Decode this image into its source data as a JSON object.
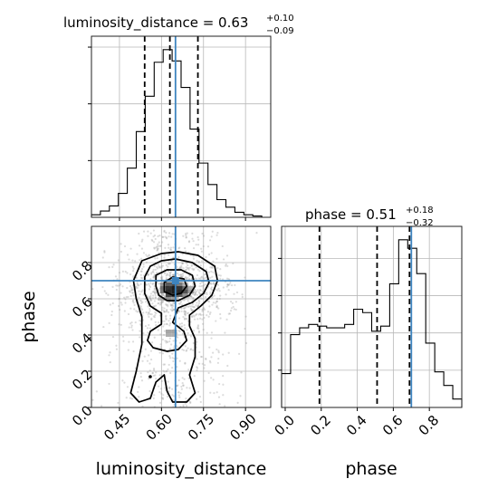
{
  "chart_data": [
    {
      "type": "histogram",
      "panel": "top-left",
      "parameter": "luminosity_distance",
      "title_text": "luminosity_distance = 0.63",
      "title_sup": "+0.10",
      "title_sub": "−0.09",
      "xlim": [
        0.35,
        0.99
      ],
      "bin_edges": [
        0.35,
        0.382,
        0.414,
        0.446,
        0.478,
        0.51,
        0.542,
        0.574,
        0.606,
        0.638,
        0.67,
        0.702,
        0.734,
        0.766,
        0.798,
        0.83,
        0.862,
        0.894,
        0.926,
        0.958,
        0.99
      ],
      "counts": [
        2,
        5,
        9,
        19,
        39,
        68,
        96,
        123,
        133,
        124,
        103,
        70,
        43,
        26,
        14,
        8,
        4,
        2,
        1,
        0
      ],
      "quantiles": [
        0.54,
        0.63,
        0.73
      ],
      "truth": 0.65
    },
    {
      "type": "histogram",
      "panel": "bottom-right",
      "parameter": "phase",
      "title_text": "phase = 0.51",
      "title_sup": "+0.18",
      "title_sub": "−0.32",
      "xlim": [
        -0.02,
        0.98
      ],
      "bin_edges": [
        -0.02,
        0.03,
        0.08,
        0.13,
        0.18,
        0.23,
        0.28,
        0.33,
        0.38,
        0.43,
        0.48,
        0.53,
        0.58,
        0.63,
        0.68,
        0.73,
        0.78,
        0.83,
        0.88,
        0.93,
        0.98
      ],
      "counts": [
        20,
        43,
        47,
        49,
        48,
        47,
        47,
        49,
        58,
        56,
        45,
        48,
        73,
        99,
        94,
        79,
        38,
        21,
        13,
        5
      ],
      "quantiles": [
        0.19,
        0.51,
        0.69
      ],
      "truth": 0.7,
      "xticks": [
        "0.0",
        "0.2",
        "0.4",
        "0.6",
        "0.8"
      ],
      "xlabel": "phase"
    },
    {
      "type": "scatter",
      "panel": "bottom-left",
      "xlim": [
        0.35,
        0.99
      ],
      "ylim": [
        0.0,
        1.0
      ],
      "xticks": [
        "0.45",
        "0.60",
        "0.75",
        "0.90"
      ],
      "yticks": [
        "0.0",
        "0.2",
        "0.4",
        "0.6",
        "0.8"
      ],
      "xlabel": "luminosity_distance",
      "ylabel": "phase",
      "truth": [
        0.65,
        0.7
      ],
      "density_cells": [
        {
          "x": 0.625,
          "y": 0.7,
          "v": 0.3
        },
        {
          "x": 0.645,
          "y": 0.7,
          "v": 0.3
        },
        {
          "x": 0.665,
          "y": 0.7,
          "v": 0.2
        },
        {
          "x": 0.605,
          "y": 0.68,
          "v": 0.4
        },
        {
          "x": 0.625,
          "y": 0.68,
          "v": 0.7
        },
        {
          "x": 0.645,
          "y": 0.68,
          "v": 0.8
        },
        {
          "x": 0.665,
          "y": 0.68,
          "v": 0.55
        },
        {
          "x": 0.685,
          "y": 0.68,
          "v": 0.3
        },
        {
          "x": 0.605,
          "y": 0.66,
          "v": 0.6
        },
        {
          "x": 0.625,
          "y": 0.66,
          "v": 0.9
        },
        {
          "x": 0.645,
          "y": 0.66,
          "v": 1.0
        },
        {
          "x": 0.665,
          "y": 0.66,
          "v": 0.9
        },
        {
          "x": 0.685,
          "y": 0.66,
          "v": 0.6
        },
        {
          "x": 0.705,
          "y": 0.66,
          "v": 0.3
        },
        {
          "x": 0.605,
          "y": 0.64,
          "v": 0.55
        },
        {
          "x": 0.625,
          "y": 0.64,
          "v": 0.95
        },
        {
          "x": 0.645,
          "y": 0.64,
          "v": 1.0
        },
        {
          "x": 0.665,
          "y": 0.64,
          "v": 0.95
        },
        {
          "x": 0.685,
          "y": 0.64,
          "v": 0.75
        },
        {
          "x": 0.705,
          "y": 0.64,
          "v": 0.4
        },
        {
          "x": 0.625,
          "y": 0.62,
          "v": 0.8
        },
        {
          "x": 0.645,
          "y": 0.62,
          "v": 0.85
        },
        {
          "x": 0.665,
          "y": 0.62,
          "v": 0.7
        },
        {
          "x": 0.685,
          "y": 0.62,
          "v": 0.45
        },
        {
          "x": 0.605,
          "y": 0.6,
          "v": 0.3
        },
        {
          "x": 0.625,
          "y": 0.6,
          "v": 0.45
        },
        {
          "x": 0.645,
          "y": 0.6,
          "v": 0.4
        },
        {
          "x": 0.625,
          "y": 0.42,
          "v": 0.35
        },
        {
          "x": 0.645,
          "y": 0.42,
          "v": 0.35
        },
        {
          "x": 0.625,
          "y": 0.4,
          "v": 0.3
        },
        {
          "x": 0.645,
          "y": 0.4,
          "v": 0.3
        }
      ],
      "contours": [
        [
          [
            0.56,
            0.78
          ],
          [
            0.6,
            0.81
          ],
          [
            0.65,
            0.82
          ],
          [
            0.71,
            0.8
          ],
          [
            0.76,
            0.75
          ],
          [
            0.77,
            0.69
          ],
          [
            0.75,
            0.63
          ],
          [
            0.71,
            0.58
          ],
          [
            0.66,
            0.55
          ],
          [
            0.64,
            0.47
          ],
          [
            0.68,
            0.42
          ],
          [
            0.69,
            0.37
          ],
          [
            0.66,
            0.32
          ],
          [
            0.62,
            0.31
          ],
          [
            0.57,
            0.33
          ],
          [
            0.55,
            0.37
          ],
          [
            0.56,
            0.42
          ],
          [
            0.6,
            0.46
          ],
          [
            0.6,
            0.52
          ],
          [
            0.56,
            0.56
          ],
          [
            0.54,
            0.63
          ],
          [
            0.54,
            0.72
          ],
          [
            0.56,
            0.78
          ]
        ],
        [
          [
            0.58,
            0.73
          ],
          [
            0.62,
            0.76
          ],
          [
            0.67,
            0.76
          ],
          [
            0.71,
            0.73
          ],
          [
            0.72,
            0.67
          ],
          [
            0.7,
            0.62
          ],
          [
            0.66,
            0.59
          ],
          [
            0.62,
            0.59
          ],
          [
            0.59,
            0.62
          ],
          [
            0.58,
            0.67
          ],
          [
            0.58,
            0.73
          ]
        ],
        [
          [
            0.61,
            0.69
          ],
          [
            0.64,
            0.72
          ],
          [
            0.68,
            0.71
          ],
          [
            0.69,
            0.67
          ],
          [
            0.67,
            0.63
          ],
          [
            0.64,
            0.62
          ],
          [
            0.61,
            0.64
          ],
          [
            0.61,
            0.69
          ]
        ],
        [
          [
            0.53,
            0.81
          ],
          [
            0.6,
            0.85
          ],
          [
            0.66,
            0.86
          ],
          [
            0.73,
            0.84
          ],
          [
            0.79,
            0.78
          ],
          [
            0.8,
            0.7
          ],
          [
            0.78,
            0.62
          ],
          [
            0.74,
            0.56
          ],
          [
            0.7,
            0.51
          ],
          [
            0.7,
            0.45
          ],
          [
            0.72,
            0.38
          ],
          [
            0.72,
            0.28
          ],
          [
            0.7,
            0.18
          ],
          [
            0.72,
            0.08
          ],
          [
            0.69,
            0.03
          ],
          [
            0.64,
            0.03
          ],
          [
            0.62,
            0.09
          ],
          [
            0.61,
            0.18
          ],
          [
            0.58,
            0.14
          ],
          [
            0.56,
            0.05
          ],
          [
            0.52,
            0.03
          ],
          [
            0.49,
            0.08
          ],
          [
            0.51,
            0.2
          ],
          [
            0.53,
            0.35
          ],
          [
            0.53,
            0.5
          ],
          [
            0.51,
            0.6
          ],
          [
            0.5,
            0.7
          ],
          [
            0.53,
            0.81
          ]
        ]
      ]
    }
  ]
}
